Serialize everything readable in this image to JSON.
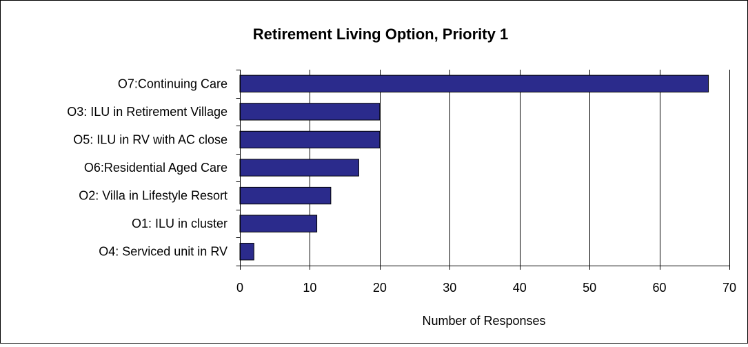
{
  "chart_data": {
    "type": "bar",
    "orientation": "horizontal",
    "title": "Retirement Living Option, Priority 1",
    "xlabel": "Number of Responses",
    "ylabel": "",
    "categories": [
      "O7:Continuing Care",
      "O3: ILU in Retirement Village",
      "O5: ILU in RV with AC close",
      "O6:Residential Aged Care",
      "O2: Villa in Lifestyle Resort",
      "O1: ILU in cluster",
      "O4: Serviced unit in RV"
    ],
    "values": [
      67,
      20,
      20,
      17,
      13,
      11,
      2
    ],
    "xlim": [
      0,
      70
    ],
    "xticks": [
      0,
      10,
      20,
      30,
      40,
      50,
      60,
      70
    ],
    "grid": "vertical",
    "legend": "none",
    "colors": {
      "bar_fill": "#2b2b8c",
      "bar_stroke": "#000000",
      "grid": "#000000",
      "frame": "#000000",
      "background": "#ffffff"
    }
  }
}
